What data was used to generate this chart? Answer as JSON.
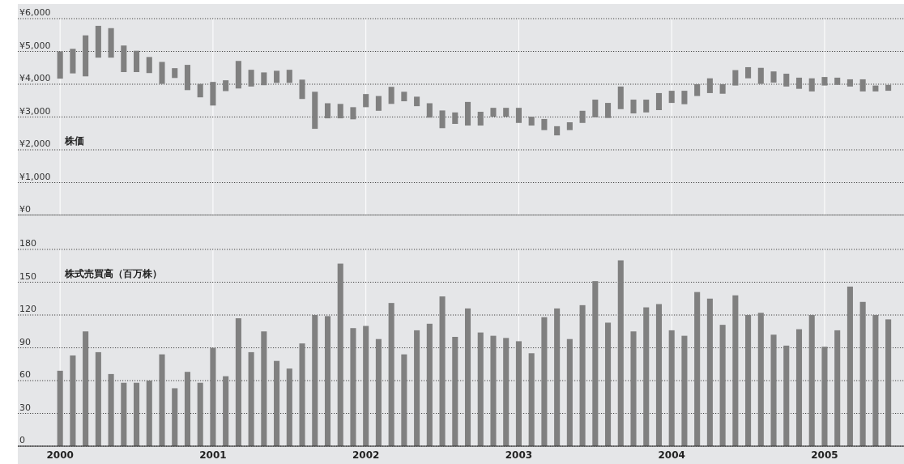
{
  "chart_data": [
    {
      "type": "bar",
      "ylabel": "株価",
      "categories": [
        "2000",
        null,
        null,
        null,
        null,
        null,
        null,
        null,
        null,
        null,
        null,
        null,
        "2001",
        null,
        null,
        null,
        null,
        null,
        null,
        null,
        null,
        null,
        null,
        null,
        "2002",
        null,
        null,
        null,
        null,
        null,
        null,
        null,
        null,
        null,
        null,
        null,
        "2003",
        null,
        null,
        null,
        null,
        null,
        null,
        null,
        null,
        null,
        null,
        null,
        "2004",
        null,
        null,
        null,
        null,
        null,
        null,
        null,
        null,
        null,
        null,
        null,
        "2005",
        null,
        null,
        null,
        null,
        null
      ],
      "base": [
        4170,
        4330,
        4240,
        4810,
        4810,
        4370,
        4370,
        4340,
        4010,
        4190,
        3820,
        3600,
        3350,
        3790,
        3870,
        3930,
        3970,
        4040,
        4040,
        3550,
        2640,
        2960,
        2960,
        2930,
        3300,
        3190,
        3400,
        3480,
        3330,
        2980,
        2660,
        2790,
        2740,
        2740,
        3010,
        3010,
        2820,
        2740,
        2600,
        2440,
        2600,
        2820,
        2990,
        2970,
        3240,
        3110,
        3140,
        3210,
        3430,
        3390,
        3640,
        3730,
        3710,
        3960,
        4180,
        4010,
        4050,
        3930,
        3860,
        3780,
        3960,
        3980,
        3930,
        3780,
        3780,
        3800
      ],
      "values": [
        830,
        750,
        1250,
        970,
        900,
        810,
        650,
        490,
        670,
        300,
        770,
        410,
        720,
        330,
        840,
        510,
        390,
        370,
        400,
        590,
        1130,
        460,
        440,
        370,
        400,
        450,
        520,
        290,
        290,
        440,
        540,
        350,
        720,
        420,
        270,
        270,
        460,
        270,
        340,
        280,
        240,
        370,
        540,
        460,
        690,
        420,
        390,
        520,
        370,
        410,
        360,
        450,
        290,
        470,
        340,
        490,
        340,
        390,
        340,
        400,
        260,
        220,
        220,
        370,
        180,
        180
      ],
      "color": "#808080",
      "ylim": [
        0,
        6000
      ],
      "yticks": [
        {
          "value": 0,
          "label": "¥0"
        },
        {
          "value": 1000,
          "label": "¥1,000"
        },
        {
          "value": 2000,
          "label": "¥2,000"
        },
        {
          "value": 3000,
          "label": "¥3,000"
        },
        {
          "value": 4000,
          "label": "¥4,000"
        },
        {
          "value": 5000,
          "label": "¥5,000"
        },
        {
          "value": 6000,
          "label": "¥6,000"
        }
      ],
      "grid": true,
      "tick_labels": "y"
    },
    {
      "type": "bar",
      "ylabel": "株式売買高（百万株）",
      "categories": [
        "2000",
        null,
        null,
        null,
        null,
        null,
        null,
        null,
        null,
        null,
        null,
        null,
        "2001",
        null,
        null,
        null,
        null,
        null,
        null,
        null,
        null,
        null,
        null,
        null,
        "2002",
        null,
        null,
        null,
        null,
        null,
        null,
        null,
        null,
        null,
        null,
        null,
        "2003",
        null,
        null,
        null,
        null,
        null,
        null,
        null,
        null,
        null,
        null,
        null,
        "2004",
        null,
        null,
        null,
        null,
        null,
        null,
        null,
        null,
        null,
        null,
        null,
        "2005",
        null,
        null,
        null,
        null,
        null
      ],
      "values": [
        69,
        83,
        105,
        86,
        66,
        58,
        58,
        60,
        84,
        53,
        68,
        58,
        90,
        64,
        117,
        86,
        105,
        78,
        71,
        94,
        120,
        119,
        167,
        108,
        110,
        98,
        131,
        84,
        106,
        112,
        137,
        100,
        126,
        104,
        101,
        99,
        96,
        85,
        118,
        126,
        98,
        129,
        151,
        113,
        170,
        105,
        127,
        130,
        106,
        101,
        141,
        135,
        111,
        138,
        120,
        122,
        102,
        92,
        107,
        120,
        91,
        106,
        146,
        132,
        120,
        116
      ],
      "color": "#808080",
      "ylim": [
        0,
        180
      ],
      "yticks": [
        0,
        30,
        60,
        90,
        120,
        150,
        180
      ],
      "grid": true
    }
  ]
}
